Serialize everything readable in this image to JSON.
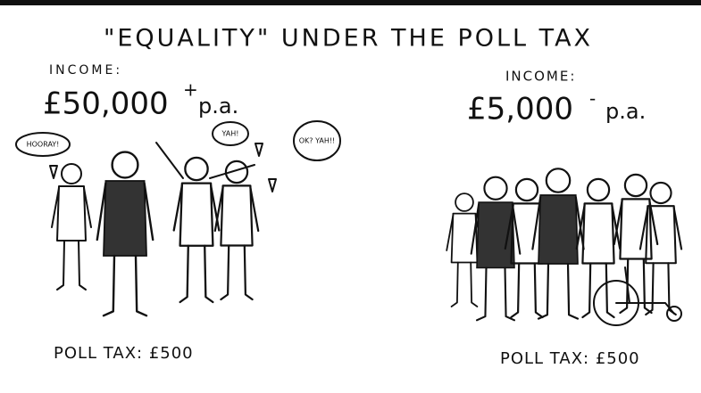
{
  "title": "\"EQUALITY\" UNDER THE POLL TAX",
  "panels": [
    {
      "income_label": "INCOME:",
      "income": "£50,000",
      "income_mark": "+",
      "income_period": "p.a.",
      "speech": [
        "HOORAY!",
        "YAH!",
        "OK? YAH!!"
      ],
      "poll_tax": "POLL TAX: £500"
    },
    {
      "income_label": "INCOME:",
      "income": "£5,000",
      "income_mark": "-",
      "income_period": "p.a.",
      "poll_tax": "POLL TAX: £500"
    }
  ]
}
